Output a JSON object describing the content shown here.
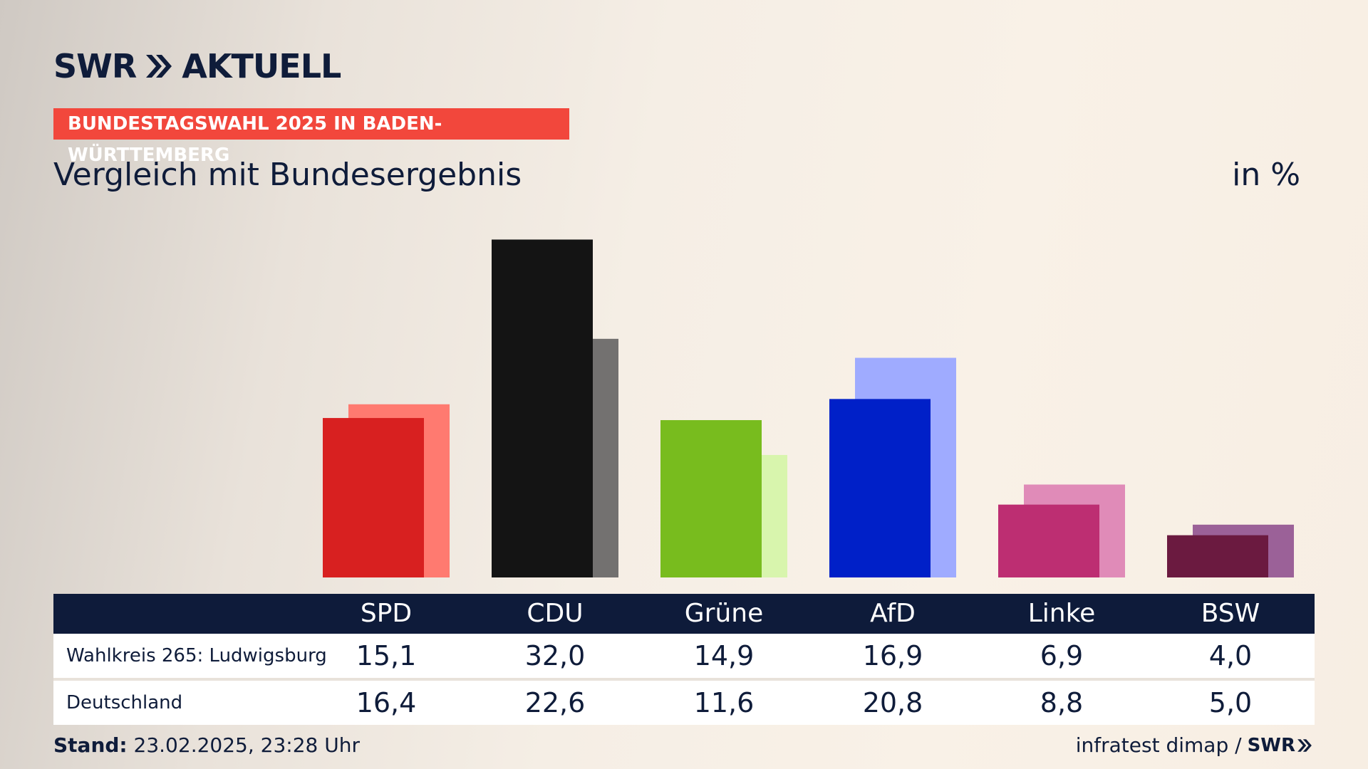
{
  "brand": {
    "name": "SWR",
    "product": "AKTUELL"
  },
  "badge": "BUNDESTAGSWAHL 2025 IN BADEN-WÜRTTEMBERG",
  "subtitle": "Vergleich mit Bundesergebnis",
  "unit": "in %",
  "colors": {
    "navy": "#0e1b3a",
    "badge": "#f2473c"
  },
  "chart_data": {
    "type": "bar",
    "categories": [
      "SPD",
      "CDU",
      "Grüne",
      "AfD",
      "Linke",
      "BSW"
    ],
    "series": [
      {
        "name": "Wahlkreis 265: Ludwigsburg",
        "values": [
          15.1,
          32.0,
          14.9,
          16.9,
          6.9,
          4.0
        ],
        "colors": [
          "#d82020",
          "#141414",
          "#78bc1e",
          "#0020c8",
          "#bd2e72",
          "#6b1a40"
        ]
      },
      {
        "name": "Deutschland",
        "values": [
          16.4,
          22.6,
          11.6,
          20.8,
          8.8,
          5.0
        ],
        "colors": [
          "#ff7a70",
          "#737170",
          "#d8f5ad",
          "#9fabff",
          "#e08bb8",
          "#9b6198"
        ]
      }
    ],
    "value_labels": [
      [
        "15,1",
        "32,0",
        "14,9",
        "16,9",
        "6,9",
        "4,0"
      ],
      [
        "16,4",
        "22,6",
        "11,6",
        "20,8",
        "8,8",
        "5,0"
      ]
    ]
  },
  "footer": {
    "stand_label": "Stand:",
    "stand_value": "23.02.2025, 23:28 Uhr",
    "source": "infratest dimap /",
    "source_brand": "SWR"
  }
}
